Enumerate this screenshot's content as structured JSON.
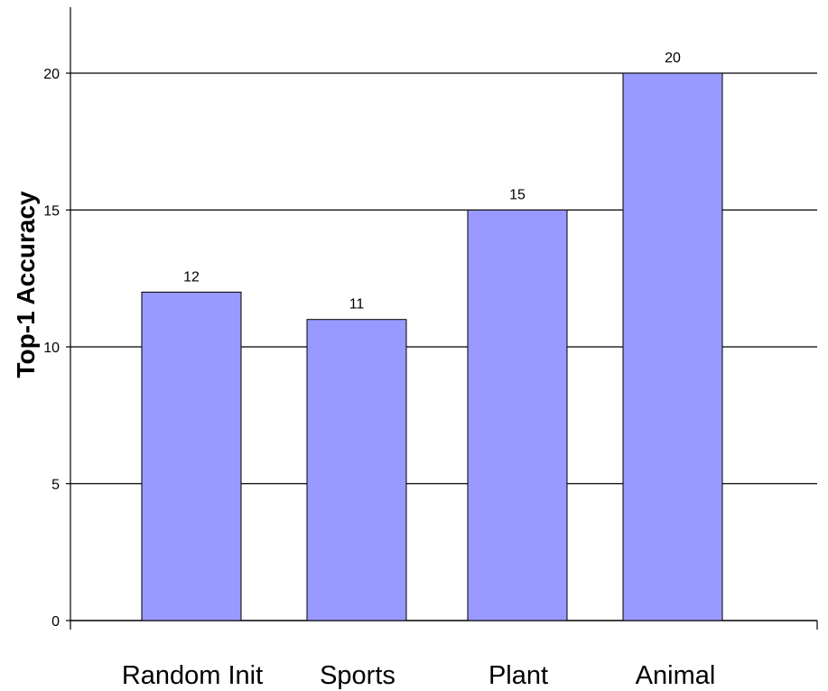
{
  "chart_data": {
    "type": "bar",
    "title": "",
    "xlabel": "",
    "ylabel": "Top-1 Accuracy",
    "categories": [
      "Random Init",
      "Sports",
      "Plant",
      "Animal"
    ],
    "values": [
      12,
      11,
      15,
      20
    ],
    "data_labels": [
      "12",
      "11",
      "15",
      "20"
    ],
    "yticks": [
      0,
      5,
      10,
      15,
      20
    ],
    "ylim": [
      0,
      22
    ],
    "grid": true,
    "legend": "none",
    "bar_color": "#9999ff",
    "bar_border_color": "#000000",
    "gridline_color": "#000000"
  }
}
